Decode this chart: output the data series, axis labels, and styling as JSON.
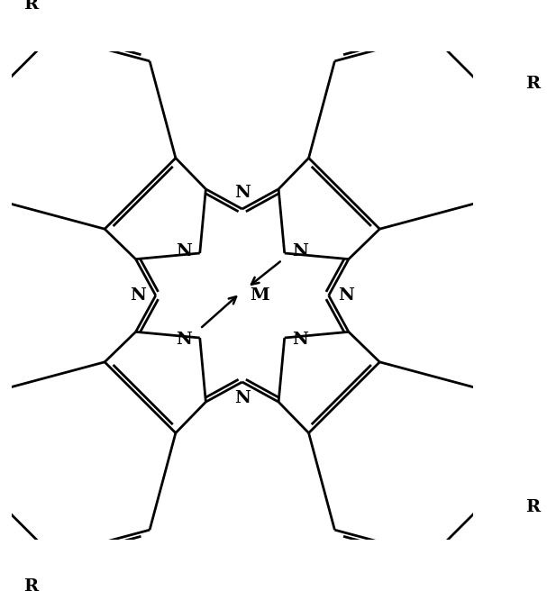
{
  "figsize": [
    6.07,
    6.56
  ],
  "dpi": 100,
  "xlim": [
    -5.2,
    5.2
  ],
  "ylim": [
    -5.5,
    5.5
  ],
  "lw": 2.0,
  "lw_thin": 1.6,
  "fs": 14,
  "metal_label": "M",
  "bond_color": "#000000"
}
